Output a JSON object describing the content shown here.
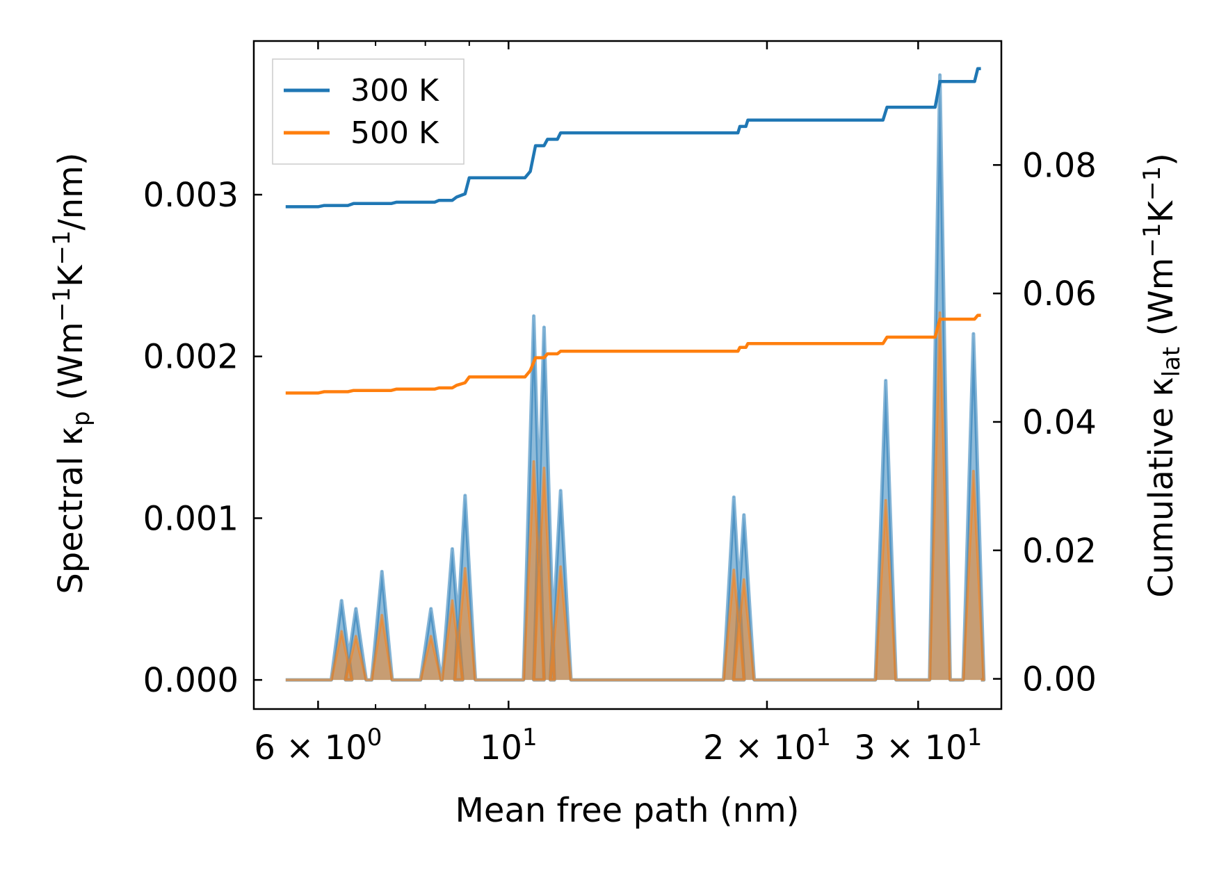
{
  "chart_data": {
    "type": "line",
    "x_scale": "log",
    "xlabel": "Mean free path (nm)",
    "ylabel_left": "Spectral κp (Wm−1K−1/nm)",
    "ylabel_left_parts": {
      "pre": "Spectral κ",
      "sub": "p",
      "mid": " (Wm",
      "sup1": "−1",
      "k": "K",
      "sup2": "−1",
      "post": "/nm)"
    },
    "ylabel_right": "Cumulative κlat (Wm−1K−1)",
    "ylabel_right_parts": {
      "pre": "Cumulative κ",
      "sub": "lat",
      "mid": " (Wm",
      "sup1": "−1",
      "k": "K",
      "sup2": "−1",
      "post": ")"
    },
    "xlim": [
      5.05,
      37.5
    ],
    "ylim_left": [
      -0.00018,
      0.00395
    ],
    "ylim_right": [
      -0.0047,
      0.0993
    ],
    "x_ticks": [
      {
        "value": 6,
        "base": "6 × 10",
        "exp": "0"
      },
      {
        "value": 10,
        "base": "10",
        "exp": "1"
      },
      {
        "value": 20,
        "base": "2 × 10",
        "exp": "1"
      },
      {
        "value": 30,
        "base": "3 × 10",
        "exp": "1"
      }
    ],
    "x_minor_ticks": [
      7,
      8,
      9,
      40
    ],
    "y_left_ticks": [
      "0.000",
      "0.001",
      "0.002",
      "0.003"
    ],
    "y_left_tick_values": [
      0,
      0.001,
      0.002,
      0.003
    ],
    "y_right_ticks": [
      "0.00",
      "0.02",
      "0.04",
      "0.06",
      "0.08"
    ],
    "y_right_tick_values": [
      0,
      0.02,
      0.04,
      0.06,
      0.08
    ],
    "x_range": [
      5.5,
      35.5
    ],
    "spikes": [
      {
        "x": 6.39,
        "v300": 0.00049,
        "v500": 0.0003
      },
      {
        "x": 6.64,
        "v300": 0.00044,
        "v500": 0.00027
      },
      {
        "x": 7.12,
        "v300": 0.00067,
        "v500": 0.0004
      },
      {
        "x": 8.12,
        "v300": 0.00044,
        "v500": 0.00027
      },
      {
        "x": 8.6,
        "v300": 0.00081,
        "v500": 0.00049
      },
      {
        "x": 8.9,
        "v300": 0.00114,
        "v500": 0.00069
      },
      {
        "x": 10.7,
        "v300": 0.00225,
        "v500": 0.00135
      },
      {
        "x": 11.0,
        "v300": 0.00218,
        "v500": 0.00131
      },
      {
        "x": 11.5,
        "v300": 0.00117,
        "v500": 0.0007
      },
      {
        "x": 18.3,
        "v300": 0.00113,
        "v500": 0.00068
      },
      {
        "x": 18.8,
        "v300": 0.00102,
        "v500": 0.00062
      },
      {
        "x": 27.5,
        "v300": 0.00185,
        "v500": 0.00111
      },
      {
        "x": 31.8,
        "v300": 0.00374,
        "v500": 0.00227
      },
      {
        "x": 34.8,
        "v300": 0.00214,
        "v500": 0.00129
      }
    ],
    "cumulative_300K": {
      "x": [
        5.5,
        6.0,
        6.1,
        6.5,
        6.6,
        7.3,
        7.4,
        8.2,
        8.3,
        8.6,
        8.7,
        8.9,
        9.0,
        10.45,
        10.6,
        10.75,
        11.0,
        11.1,
        11.4,
        11.5,
        18.5,
        18.6,
        18.9,
        19.0,
        27.3,
        27.6,
        31.4,
        31.8,
        34.9,
        35.2,
        35.5
      ],
      "y": [
        0.0735,
        0.0735,
        0.0737,
        0.0737,
        0.074,
        0.074,
        0.0742,
        0.0742,
        0.0745,
        0.0745,
        0.075,
        0.0755,
        0.078,
        0.078,
        0.079,
        0.083,
        0.083,
        0.084,
        0.084,
        0.085,
        0.085,
        0.086,
        0.086,
        0.087,
        0.087,
        0.089,
        0.089,
        0.093,
        0.093,
        0.095,
        0.095
      ]
    },
    "cumulative_500K": {
      "x": [
        5.5,
        6.0,
        6.1,
        6.5,
        6.6,
        7.3,
        7.4,
        8.2,
        8.3,
        8.6,
        8.7,
        8.9,
        9.0,
        10.45,
        10.6,
        10.75,
        11.0,
        11.1,
        11.4,
        11.5,
        18.5,
        18.6,
        18.9,
        19.0,
        27.3,
        27.6,
        31.4,
        31.8,
        34.9,
        35.2,
        35.5
      ],
      "y": [
        0.0445,
        0.0445,
        0.0447,
        0.0447,
        0.0449,
        0.0449,
        0.0451,
        0.0451,
        0.0453,
        0.0453,
        0.0457,
        0.0461,
        0.047,
        0.047,
        0.048,
        0.05,
        0.05,
        0.0506,
        0.0506,
        0.051,
        0.051,
        0.0516,
        0.0516,
        0.0522,
        0.0522,
        0.0532,
        0.0532,
        0.056,
        0.056,
        0.0566,
        0.0566
      ]
    },
    "series": [
      {
        "name": "300 K",
        "color": "#1f77b4"
      },
      {
        "name": "500 K",
        "color": "#ff7f0e"
      }
    ],
    "legend_position": "top-left",
    "grid": false
  }
}
